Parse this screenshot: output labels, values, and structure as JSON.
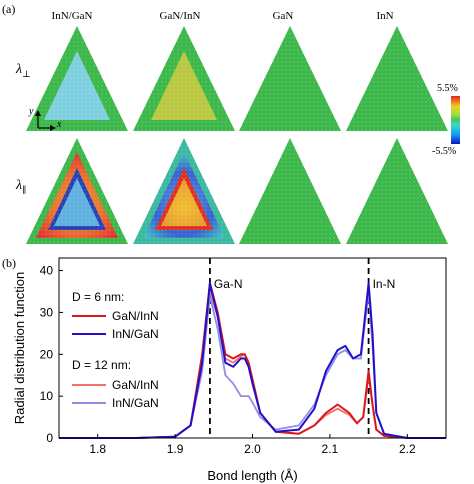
{
  "panel_a": {
    "label": "(a)",
    "columns": [
      "InN/GaN",
      "GaN/InN",
      "GaN",
      "InN"
    ],
    "rows": [
      {
        "symbol": "λ",
        "subscript": "⊥"
      },
      {
        "symbol": "λ",
        "subscript": "∥"
      }
    ],
    "axes_labels": {
      "y": "y",
      "x": "x"
    },
    "colorbar": {
      "max_label": "5.5%",
      "min_label": "-5.5%"
    }
  },
  "panel_b": {
    "label": "(b)"
  },
  "chart_data": {
    "type": "line",
    "xlabel": "Bond length (Å)",
    "ylabel": "Radial distribution function",
    "xlim": [
      1.75,
      2.25
    ],
    "ylim": [
      0,
      43
    ],
    "xticks": [
      "1.8",
      "1.9",
      "2.0",
      "2.1",
      "2.2"
    ],
    "yticks": [
      "0",
      "10",
      "20",
      "30",
      "40"
    ],
    "reference_lines": [
      {
        "x": 1.945,
        "label": "Ga-N"
      },
      {
        "x": 2.15,
        "label": "In-N"
      }
    ],
    "legend_groups": [
      {
        "title": "D = 6 nm:"
      },
      {
        "title": "D = 12 nm:"
      }
    ],
    "series": [
      {
        "name": "GaN/InN",
        "group": "D = 6 nm:",
        "color": "#d7191c",
        "x": [
          1.75,
          1.85,
          1.9,
          1.92,
          1.935,
          1.945,
          1.955,
          1.965,
          1.975,
          1.985,
          1.99,
          1.995,
          2.0,
          2.01,
          2.03,
          2.06,
          2.08,
          2.095,
          2.11,
          2.125,
          2.135,
          2.143,
          2.15,
          2.155,
          2.16,
          2.17,
          2.2,
          2.25
        ],
        "y": [
          0,
          0,
          0.3,
          3,
          20,
          37,
          30,
          20,
          19,
          20,
          20,
          18,
          14,
          6,
          1.5,
          1,
          3,
          6,
          8,
          6,
          3.5,
          5,
          16,
          8,
          2,
          0.5,
          0,
          0
        ]
      },
      {
        "name": "InN/GaN",
        "group": "D = 6 nm:",
        "color": "#2410c8",
        "x": [
          1.75,
          1.85,
          1.9,
          1.92,
          1.935,
          1.945,
          1.955,
          1.965,
          1.975,
          1.985,
          1.99,
          1.995,
          2.0,
          2.01,
          2.03,
          2.06,
          2.08,
          2.095,
          2.11,
          2.12,
          2.13,
          2.14,
          2.15,
          2.155,
          2.16,
          2.17,
          2.2,
          2.25
        ],
        "y": [
          0,
          0,
          0.3,
          3,
          18,
          37,
          29,
          18,
          17,
          19,
          19,
          17,
          13,
          6,
          1.5,
          2,
          7,
          16,
          21,
          22,
          19,
          20,
          37,
          25,
          6,
          1,
          0,
          0
        ]
      },
      {
        "name": "GaN/InN",
        "group": "D = 12 nm:",
        "color": "#f07070",
        "x": [
          1.75,
          1.85,
          1.9,
          1.92,
          1.935,
          1.945,
          1.955,
          1.965,
          1.975,
          1.985,
          1.99,
          1.995,
          2.0,
          2.01,
          2.03,
          2.06,
          2.08,
          2.095,
          2.11,
          2.125,
          2.135,
          2.143,
          2.15,
          2.155,
          2.16,
          2.17,
          2.2,
          2.25
        ],
        "y": [
          0,
          0,
          0.3,
          3,
          19,
          35,
          29,
          19,
          18,
          19.5,
          20,
          18,
          14,
          6,
          1.5,
          1,
          3,
          5.5,
          7,
          5.5,
          3.5,
          5,
          15,
          8,
          2,
          0.5,
          0,
          0
        ]
      },
      {
        "name": "InN/GaN",
        "group": "D = 12 nm:",
        "color": "#8f8fe8",
        "x": [
          1.75,
          1.85,
          1.9,
          1.92,
          1.935,
          1.945,
          1.955,
          1.965,
          1.975,
          1.985,
          1.99,
          1.995,
          2.0,
          2.01,
          2.03,
          2.06,
          2.08,
          2.095,
          2.11,
          2.12,
          2.13,
          2.14,
          2.15,
          2.155,
          2.16,
          2.17,
          2.2,
          2.25
        ],
        "y": [
          0,
          0,
          0.3,
          3,
          16,
          34,
          26,
          15,
          13,
          10,
          10,
          10,
          8.5,
          5,
          2,
          3,
          8,
          15,
          20,
          21,
          19,
          19,
          35,
          22,
          6,
          1,
          0,
          0
        ]
      }
    ]
  }
}
